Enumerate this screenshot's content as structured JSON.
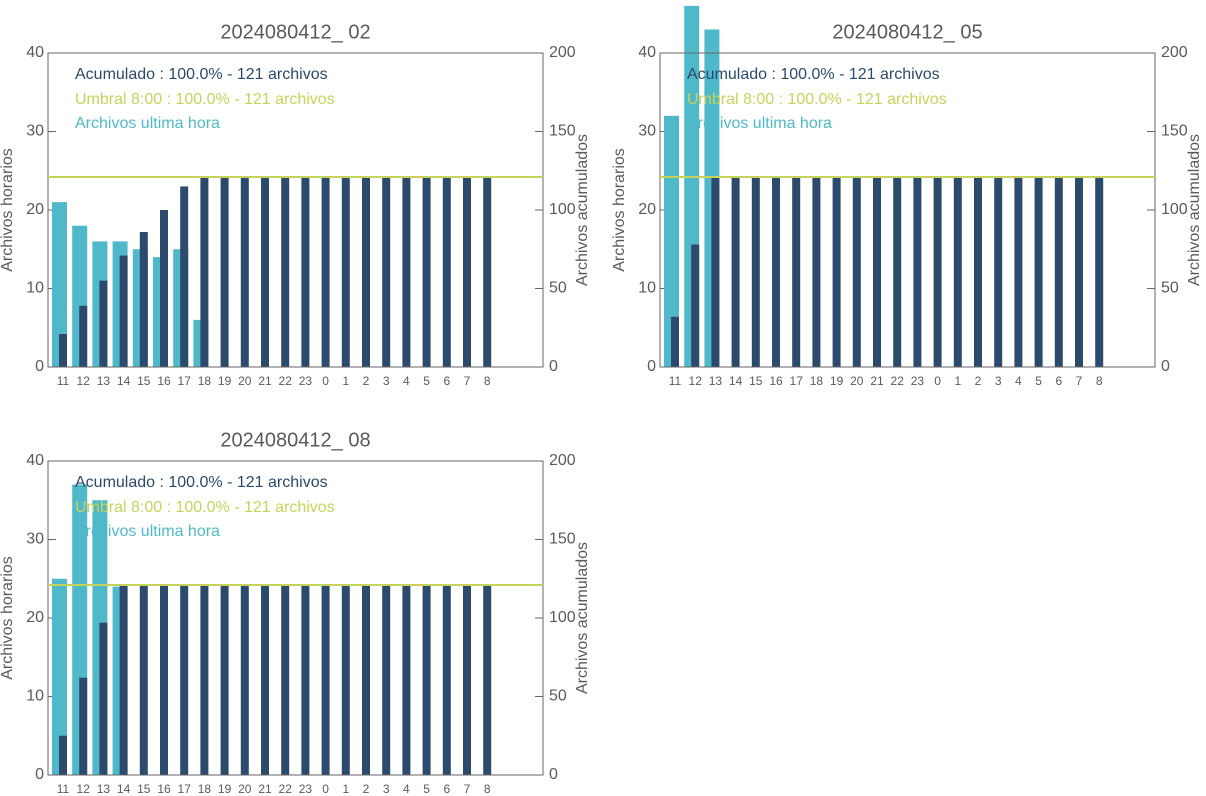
{
  "chart_data": [
    {
      "type": "bar",
      "title": "2024080412_ 02",
      "ylabel": "Archivos horarios",
      "y2label": "Archivos acumulados",
      "categories": [
        "11",
        "12",
        "13",
        "14",
        "15",
        "16",
        "17",
        "18",
        "19",
        "20",
        "21",
        "22",
        "23",
        "0",
        "1",
        "2",
        "3",
        "4",
        "5",
        "6",
        "7",
        "8"
      ],
      "ylim": [
        0,
        40
      ],
      "yticks": [
        0,
        10,
        20,
        30,
        40
      ],
      "y2lim": [
        0,
        200
      ],
      "y2ticks": [
        0,
        50,
        100,
        150,
        200
      ],
      "series": [
        {
          "name": "Acumulado : 100.0% - 121 archivos",
          "color": "#2c4a6c",
          "axis": "y2",
          "values": [
            21,
            39,
            55,
            71,
            86,
            100,
            115,
            121,
            121,
            121,
            121,
            121,
            121,
            121,
            121,
            121,
            121,
            121,
            121,
            121,
            121,
            121
          ]
        },
        {
          "name": "Archivos ultima hora",
          "color": "#4fb9c9",
          "values": [
            21,
            18,
            16,
            16,
            15,
            14,
            15,
            6,
            0,
            0,
            0,
            0,
            0,
            0,
            0,
            0,
            0,
            0,
            0,
            0,
            0,
            0
          ]
        }
      ],
      "threshold": {
        "name": "Umbral 8:00 : 100.0% - 121 archivos",
        "value": 121,
        "color": "#c6d35b",
        "axis": "y2"
      }
    },
    {
      "type": "bar",
      "title": "2024080412_ 05",
      "ylabel": "Archivos horarios",
      "y2label": "Archivos acumulados",
      "categories": [
        "11",
        "12",
        "13",
        "14",
        "15",
        "16",
        "17",
        "18",
        "19",
        "20",
        "21",
        "22",
        "23",
        "0",
        "1",
        "2",
        "3",
        "4",
        "5",
        "6",
        "7",
        "8"
      ],
      "ylim": [
        0,
        40
      ],
      "yticks": [
        0,
        10,
        20,
        30,
        40
      ],
      "y2lim": [
        0,
        200
      ],
      "y2ticks": [
        0,
        50,
        100,
        150,
        200
      ],
      "series": [
        {
          "name": "Acumulado : 100.0% - 121 archivos",
          "color": "#2c4a6c",
          "axis": "y2",
          "values": [
            32,
            78,
            121,
            121,
            121,
            121,
            121,
            121,
            121,
            121,
            121,
            121,
            121,
            121,
            121,
            121,
            121,
            121,
            121,
            121,
            121,
            121
          ]
        },
        {
          "name": "Archivos ultima hora",
          "color": "#4fb9c9",
          "values": [
            32,
            46,
            43,
            0,
            0,
            0,
            0,
            0,
            0,
            0,
            0,
            0,
            0,
            0,
            0,
            0,
            0,
            0,
            0,
            0,
            0,
            0
          ]
        }
      ],
      "threshold": {
        "name": "Umbral 8:00 : 100.0% - 121 archivos",
        "value": 121,
        "color": "#c6d35b",
        "axis": "y2"
      }
    },
    {
      "type": "bar",
      "title": "2024080412_ 08",
      "ylabel": "Archivos horarios",
      "y2label": "Archivos acumulados",
      "categories": [
        "11",
        "12",
        "13",
        "14",
        "15",
        "16",
        "17",
        "18",
        "19",
        "20",
        "21",
        "22",
        "23",
        "0",
        "1",
        "2",
        "3",
        "4",
        "5",
        "6",
        "7",
        "8"
      ],
      "ylim": [
        0,
        40
      ],
      "yticks": [
        0,
        10,
        20,
        30,
        40
      ],
      "y2lim": [
        0,
        200
      ],
      "y2ticks": [
        0,
        50,
        100,
        150,
        200
      ],
      "series": [
        {
          "name": "Acumulado : 100.0% - 121 archivos",
          "color": "#2c4a6c",
          "axis": "y2",
          "values": [
            25,
            62,
            97,
            121,
            121,
            121,
            121,
            121,
            121,
            121,
            121,
            121,
            121,
            121,
            121,
            121,
            121,
            121,
            121,
            121,
            121,
            121
          ]
        },
        {
          "name": "Archivos ultima hora",
          "color": "#4fb9c9",
          "values": [
            25,
            37,
            35,
            24,
            0,
            0,
            0,
            0,
            0,
            0,
            0,
            0,
            0,
            0,
            0,
            0,
            0,
            0,
            0,
            0,
            0,
            0
          ]
        }
      ],
      "threshold": {
        "name": "Umbral 8:00 : 100.0% - 121 archivos",
        "value": 121,
        "color": "#c6d35b",
        "axis": "y2"
      }
    }
  ]
}
